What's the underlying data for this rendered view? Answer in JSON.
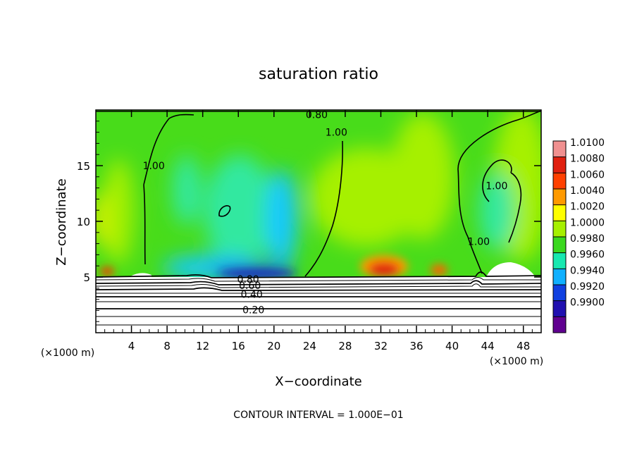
{
  "chart_data": {
    "type": "heatmap",
    "title": "saturation ratio",
    "xlabel": "X−coordinate",
    "ylabel": "Z−coordinate",
    "x_unit": "(×1000 m)",
    "y_unit": "(×1000 m)",
    "footer": "CONTOUR INTERVAL = 1.000E−01",
    "xlim": [
      0,
      50
    ],
    "ylim": [
      0,
      20
    ],
    "x_ticks": [
      "4",
      "8",
      "12",
      "16",
      "20",
      "24",
      "28",
      "32",
      "36",
      "40",
      "44",
      "48"
    ],
    "y_ticks": [
      "5",
      "10",
      "15"
    ],
    "colorbar": {
      "labels": [
        "1.0100",
        "1.0080",
        "1.0060",
        "1.0040",
        "1.0020",
        "1.0000",
        "0.9980",
        "0.9960",
        "0.9940",
        "0.9920",
        "0.9900"
      ],
      "colors": [
        "#f09090",
        "#e02010",
        "#ff4000",
        "#ff9a00",
        "#ffff00",
        "#a6f000",
        "#3ad81e",
        "#18e8b0",
        "#10b0ff",
        "#1040e0",
        "#2010b0",
        "#600090"
      ]
    },
    "contour_labels": [
      {
        "text": "0.80",
        "x": 24.8,
        "y": 19.6
      },
      {
        "text": "1.00",
        "x": 27.0,
        "y": 18.0
      },
      {
        "text": "1.00",
        "x": 6.5,
        "y": 15.0
      },
      {
        "text": "1.00",
        "x": 45.0,
        "y": 13.2
      },
      {
        "text": "1.00",
        "x": 43.0,
        "y": 8.2
      },
      {
        "text": "0.80",
        "x": 17.1,
        "y": 4.8
      },
      {
        "text": "0.60",
        "x": 17.3,
        "y": 4.25
      },
      {
        "text": "0.40",
        "x": 17.5,
        "y": 3.45
      },
      {
        "text": "0.20",
        "x": 17.7,
        "y": 2.05
      }
    ]
  }
}
